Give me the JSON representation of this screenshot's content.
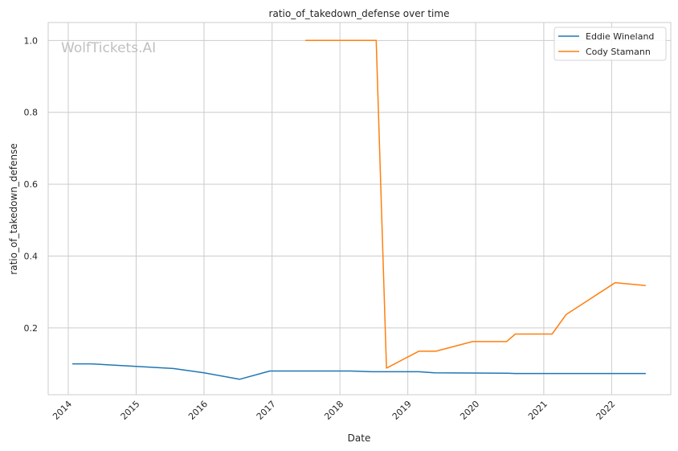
{
  "watermark": "WolfTickets.AI",
  "chart_data": {
    "type": "line",
    "title": "ratio_of_takedown_defense over time",
    "xlabel": "Date",
    "ylabel": "ratio_of_takedown_defense",
    "x_ticks": [
      "2014",
      "2015",
      "2016",
      "2017",
      "2018",
      "2019",
      "2020",
      "2021",
      "2022"
    ],
    "y_ticks": [
      "0.2",
      "0.4",
      "0.6",
      "0.8",
      "1.0"
    ],
    "xlim": [
      "2013-09-15",
      "2022-11-15"
    ],
    "ylim": [
      0.014,
      1.05
    ],
    "grid": true,
    "legend_position": "top-right",
    "series": [
      {
        "name": "Eddie Wineland",
        "color": "#1f77b4",
        "points": [
          [
            "2014-01-25",
            0.1
          ],
          [
            "2014-05-01",
            0.1
          ],
          [
            "2015-01-01",
            0.093
          ],
          [
            "2015-07-20",
            0.087
          ],
          [
            "2016-01-01",
            0.075
          ],
          [
            "2016-07-10",
            0.057
          ],
          [
            "2016-12-20",
            0.08
          ],
          [
            "2018-03-01",
            0.08
          ],
          [
            "2018-06-20",
            0.078
          ],
          [
            "2019-03-01",
            0.078
          ],
          [
            "2019-05-25",
            0.075
          ],
          [
            "2020-06-15",
            0.074
          ],
          [
            "2020-08-01",
            0.073
          ],
          [
            "2022-07-01",
            0.073
          ]
        ]
      },
      {
        "name": "Cody Stamann",
        "color": "#ff7f0e",
        "points": [
          [
            "2017-07-01",
            1.0
          ],
          [
            "2018-07-15",
            1.0
          ],
          [
            "2018-09-08",
            0.088
          ],
          [
            "2019-03-01",
            0.135
          ],
          [
            "2019-06-01",
            0.135
          ],
          [
            "2019-12-15",
            0.162
          ],
          [
            "2020-06-15",
            0.162
          ],
          [
            "2020-08-01",
            0.183
          ],
          [
            "2021-02-15",
            0.183
          ],
          [
            "2021-05-01",
            0.237
          ],
          [
            "2022-01-20",
            0.326
          ],
          [
            "2022-07-01",
            0.318
          ]
        ]
      }
    ]
  }
}
